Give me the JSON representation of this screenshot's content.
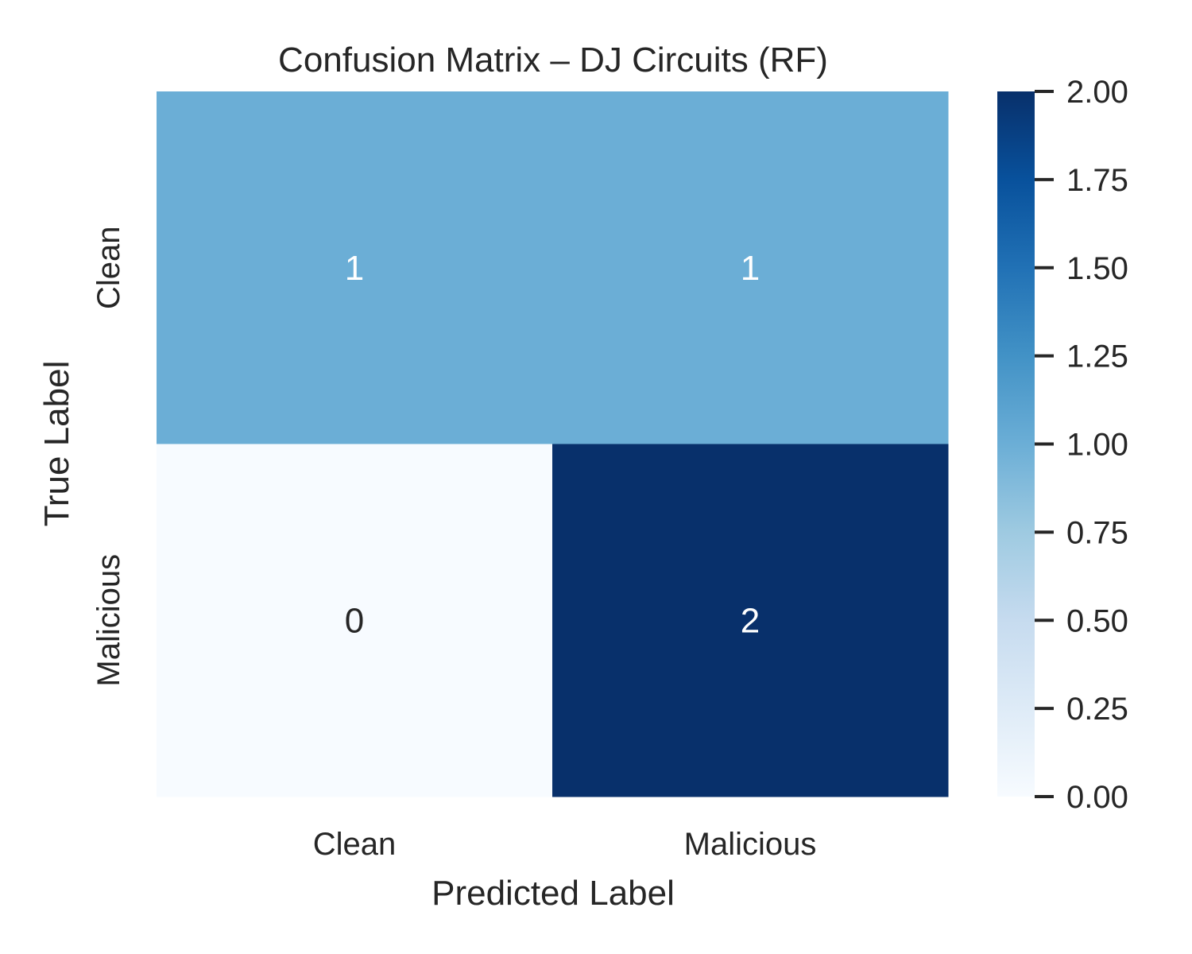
{
  "chart_data": {
    "type": "heatmap",
    "title": "Confusion Matrix – DJ Circuits (RF)",
    "xlabel": "Predicted Label",
    "ylabel": "True Label",
    "x_categories": [
      "Clean",
      "Malicious"
    ],
    "y_categories": [
      "Clean",
      "Malicious"
    ],
    "values": [
      [
        1,
        1
      ],
      [
        0,
        2
      ]
    ],
    "cell_labels": [
      [
        "1",
        "1"
      ],
      [
        "0",
        "2"
      ]
    ],
    "colorbar": {
      "range": [
        0,
        2
      ],
      "ticks": [
        0,
        0.25,
        0.5,
        0.75,
        1,
        1.25,
        1.5,
        1.75,
        2
      ],
      "tick_labels": [
        "0.00",
        "0.25",
        "0.50",
        "0.75",
        "1.00",
        "1.25",
        "1.50",
        "1.75",
        "2.00"
      ],
      "colormap": "Blues"
    },
    "colors": {
      "low": "#f7fbff",
      "mid": "#6baed6",
      "high": "#08306b",
      "text_dark": "#262626",
      "text_light": "#ffffff"
    },
    "grid": false,
    "legend": "colorbar-right"
  }
}
